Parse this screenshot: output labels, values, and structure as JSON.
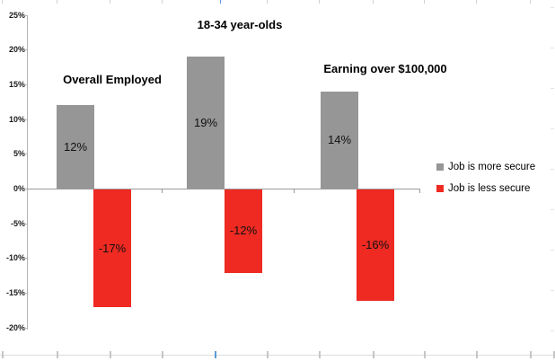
{
  "chart_data": {
    "type": "bar",
    "title": "",
    "xlabel": "",
    "ylabel": "",
    "categories": [
      "Overall Employed",
      "18-34 year-olds",
      "Earning over $100,000"
    ],
    "series": [
      {
        "name": "Job is more secure",
        "color": "#969696",
        "values": [
          12,
          19,
          14
        ],
        "labels": [
          "12%",
          "19%",
          "14%"
        ]
      },
      {
        "name": "Job is less secure",
        "color": "#EE2A22",
        "values": [
          -17,
          -12,
          -16
        ],
        "labels": [
          "-17%",
          "-12%",
          "-16%"
        ]
      }
    ],
    "ylim": [
      -20,
      25
    ],
    "ytick_step": 5,
    "ytick_labels": [
      "25%",
      "20%",
      "15%",
      "10%",
      "5%",
      "0%",
      "-5%",
      "-10%",
      "-15%",
      "-20%"
    ],
    "legend_position": "right",
    "grid": false,
    "axis_color": "#b3b3b3",
    "zero_line_color": "#9a9a9a",
    "value_label_color": "#111111",
    "accent_blue": "#5b9bd5"
  }
}
